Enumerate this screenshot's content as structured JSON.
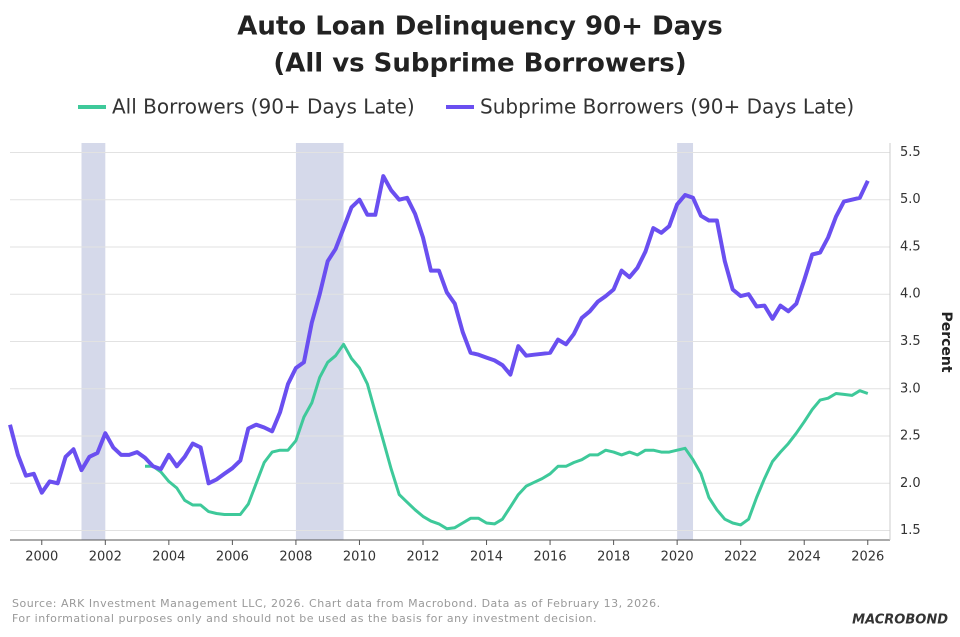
{
  "chart_data": {
    "type": "line",
    "title": "Auto Loan Delinquency 90+ Days",
    "subtitle": "(All vs Subprime Borrowers)",
    "y_label": "Percent",
    "source": [
      "Source: ARK Investment Management LLC, 2026. Chart data from Macrobond. Data as of February 13, 2026.",
      "For informational purposes only and should not be used as the basis for any investment decision."
    ],
    "logo": "MACROBOND",
    "x": [
      1999,
      1999.25,
      1999.5,
      1999.75,
      2000,
      2000.25,
      2000.5,
      2000.75,
      2001,
      2001.25,
      2001.5,
      2001.75,
      2002,
      2002.25,
      2002.5,
      2002.75,
      2003,
      2003.25,
      2003.5,
      2003.75,
      2004,
      2004.25,
      2004.5,
      2004.75,
      2005,
      2005.25,
      2005.5,
      2005.75,
      2006,
      2006.25,
      2006.5,
      2006.75,
      2007,
      2007.25,
      2007.5,
      2007.75,
      2008,
      2008.25,
      2008.5,
      2008.75,
      2009,
      2009.25,
      2009.5,
      2009.75,
      2010,
      2010.25,
      2010.5,
      2010.75,
      2011,
      2011.25,
      2011.5,
      2011.75,
      2012,
      2012.25,
      2012.5,
      2012.75,
      2013,
      2013.25,
      2013.5,
      2013.75,
      2014,
      2014.25,
      2014.5,
      2014.75,
      2015,
      2015.25,
      2015.5,
      2015.75,
      2016,
      2016.25,
      2016.5,
      2016.75,
      2017,
      2017.25,
      2017.5,
      2017.75,
      2018,
      2018.25,
      2018.5,
      2018.75,
      2019,
      2019.25,
      2019.5,
      2019.75,
      2020,
      2020.25,
      2020.5,
      2020.75,
      2021,
      2021.25,
      2021.5,
      2021.75,
      2022,
      2022.25,
      2022.5,
      2022.75,
      2023,
      2023.25,
      2023.5,
      2023.75,
      2024,
      2024.25,
      2024.5,
      2024.75,
      2025,
      2025.25,
      2025.5,
      2025.75,
      2026
    ],
    "series": [
      {
        "name": "All Borrowers (90+ Days Late)",
        "color": "#3ec99a",
        "values": [
          null,
          null,
          null,
          null,
          null,
          null,
          null,
          null,
          null,
          null,
          null,
          null,
          null,
          null,
          null,
          null,
          null,
          2.18,
          2.18,
          2.12,
          2.02,
          1.95,
          1.82,
          1.77,
          1.77,
          1.7,
          1.68,
          1.67,
          1.67,
          1.67,
          1.78,
          2.0,
          2.22,
          2.33,
          2.35,
          2.35,
          2.45,
          2.7,
          2.85,
          3.12,
          3.28,
          3.35,
          3.47,
          3.32,
          3.22,
          3.05,
          2.75,
          2.45,
          2.15,
          1.88,
          1.8,
          1.72,
          1.65,
          1.6,
          1.57,
          1.52,
          1.53,
          1.58,
          1.63,
          1.63,
          1.58,
          1.57,
          1.62,
          1.75,
          1.88,
          1.97,
          2.01,
          2.05,
          2.1,
          2.18,
          2.18,
          2.22,
          2.25,
          2.3,
          2.3,
          2.35,
          2.33,
          2.3,
          2.33,
          2.3,
          2.35,
          2.35,
          2.33,
          2.33,
          2.35,
          2.37,
          2.25,
          2.1,
          1.85,
          1.72,
          1.62,
          1.58,
          1.56,
          1.62,
          1.85,
          2.05,
          2.23,
          2.33,
          2.42,
          2.53,
          2.65,
          2.78,
          2.88,
          2.9,
          2.95,
          2.94,
          2.93,
          2.98,
          2.95
        ]
      },
      {
        "name": "Subprime Borrowers (90+ Days Late)",
        "color": "#6a4ff0",
        "values": [
          2.62,
          2.3,
          2.08,
          2.1,
          1.9,
          2.02,
          2.0,
          2.28,
          2.36,
          2.14,
          2.28,
          2.32,
          2.53,
          2.38,
          2.3,
          2.3,
          2.33,
          2.27,
          2.18,
          2.15,
          2.3,
          2.18,
          2.28,
          2.42,
          2.38,
          2.0,
          2.04,
          2.1,
          2.16,
          2.24,
          2.58,
          2.62,
          2.59,
          2.55,
          2.75,
          3.05,
          3.22,
          3.28,
          3.7,
          4.0,
          4.35,
          4.48,
          4.7,
          4.92,
          5.0,
          4.84,
          4.84,
          5.25,
          5.1,
          5.0,
          5.02,
          4.85,
          4.6,
          4.25,
          4.25,
          4.02,
          3.9,
          3.6,
          3.38,
          3.36,
          3.33,
          3.3,
          3.25,
          3.15,
          3.45,
          3.35,
          3.36,
          3.37,
          3.38,
          3.52,
          3.47,
          3.58,
          3.75,
          3.82,
          3.92,
          3.98,
          4.05,
          4.25,
          4.18,
          4.28,
          4.45,
          4.7,
          4.65,
          4.72,
          4.95,
          5.05,
          5.02,
          4.83,
          4.78,
          4.78,
          4.35,
          4.05,
          3.98,
          4.0,
          3.87,
          3.88,
          3.74,
          3.88,
          3.82,
          3.9,
          4.15,
          4.42,
          4.44,
          4.6,
          4.82,
          4.98,
          5.0,
          5.02,
          5.2
        ]
      }
    ],
    "shaded_periods": [
      [
        2001.25,
        2002
      ],
      [
        2008,
        2009.5
      ],
      [
        2020,
        2020.5
      ]
    ],
    "shade_color": "#d5d9ea",
    "xlim": [
      1999,
      2026.7
    ],
    "xticks": [
      2000,
      2002,
      2004,
      2006,
      2008,
      2010,
      2012,
      2014,
      2016,
      2018,
      2020,
      2022,
      2024,
      2026
    ],
    "ylim": [
      1.4,
      5.6
    ],
    "yticks": [
      1.5,
      {
        "value": 2,
        "label": "2.0"
      },
      2.5,
      {
        "value": 3,
        "label": "3.0"
      },
      3.5,
      {
        "value": 4,
        "label": "4.0"
      },
      4.5,
      {
        "value": 5,
        "label": "5.0"
      },
      5.5
    ],
    "grid": true
  }
}
